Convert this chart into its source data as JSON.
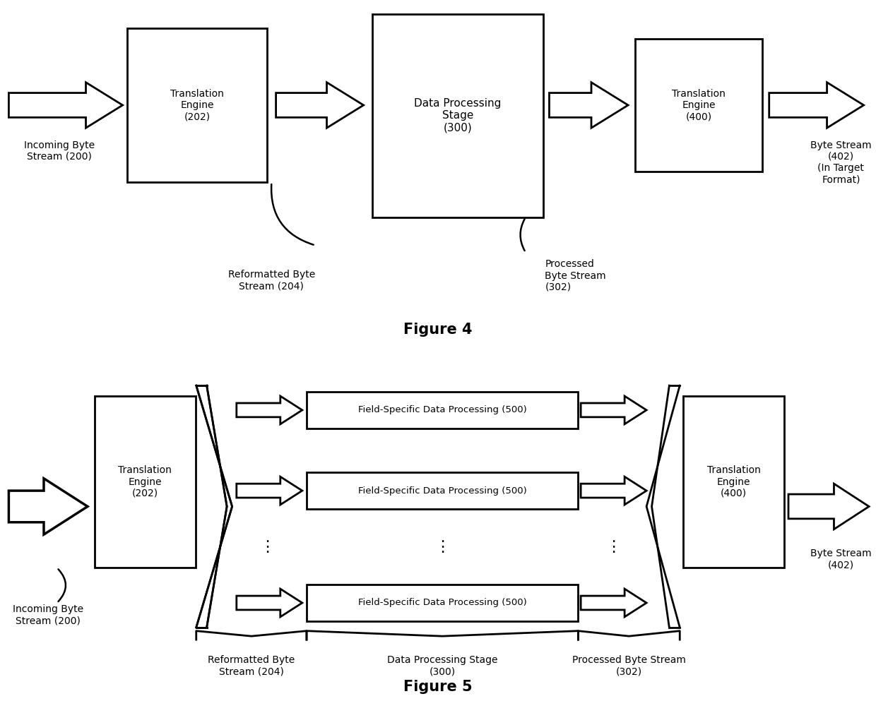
{
  "background_color": "#ffffff",
  "text_color": "#000000",
  "font_size": 10,
  "title_font_size": 15,
  "fig4_title": "Figure 4",
  "fig5_title": "Figure 5",
  "fig4": {
    "incoming_label": "Incoming Byte\nStream (200)",
    "box202_label": "Translation\nEngine\n(202)",
    "box300_label": "Data Processing\nStage\n(300)",
    "box400_label": "Translation\nEngine\n(400)",
    "reformatted_label": "Reformatted Byte\nStream (204)",
    "processed_label": "Processed\nByte Stream\n(302)",
    "outgoing_label": "Byte Stream\n(402)\n(In Target\nFormat)"
  },
  "fig5": {
    "incoming_label": "Incoming Byte\nStream (200)",
    "box202_label": "Translation\nEngine\n(202)",
    "box400_label": "Translation\nEngine\n(400)",
    "proc_label": "Field-Specific Data Processing (500)",
    "reformatted_label": "Reformatted Byte\nStream (204)",
    "dps_label": "Data Processing Stage\n(300)",
    "processed_label": "Processed Byte Stream\n(302)",
    "outgoing_label": "Byte Stream\n(402)"
  }
}
